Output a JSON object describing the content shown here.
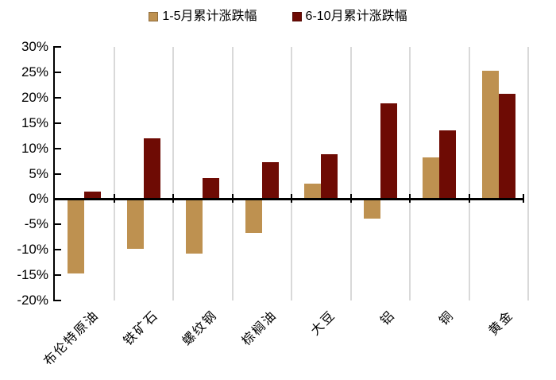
{
  "chart_data": {
    "type": "bar",
    "title": "",
    "categories": [
      "布伦特原油",
      "铁矿石",
      "螺纹钢",
      "棕榈油",
      "大豆",
      "铝",
      "铜",
      "黄金"
    ],
    "series": [
      {
        "name": "1-5月累计涨跌幅",
        "color": "#BE9150",
        "values": [
          -14.5,
          -9.6,
          -10.6,
          -6.6,
          3.0,
          -3.7,
          8.2,
          25.3
        ]
      },
      {
        "name": "6-10月累计涨跌幅",
        "color": "#6E0B04",
        "values": [
          1.4,
          11.9,
          4.2,
          7.3,
          8.8,
          18.8,
          13.5,
          20.8
        ]
      }
    ],
    "y_axis": {
      "min": -20,
      "max": 30,
      "step": 5,
      "tick_labels": [
        "30%",
        "25%",
        "20%",
        "15%",
        "10%",
        "5%",
        "0%",
        "-5%",
        "-10%",
        "-15%",
        "-20%"
      ],
      "unit": "percent"
    },
    "x_axis": {
      "label_rotation_deg": 45
    },
    "grid": {
      "vertical": true,
      "horizontal": false,
      "color": "#D9D9D9"
    },
    "legend": {
      "position": "top-center"
    },
    "colors": {
      "axis": "#000000",
      "background": "#FFFFFF"
    }
  }
}
